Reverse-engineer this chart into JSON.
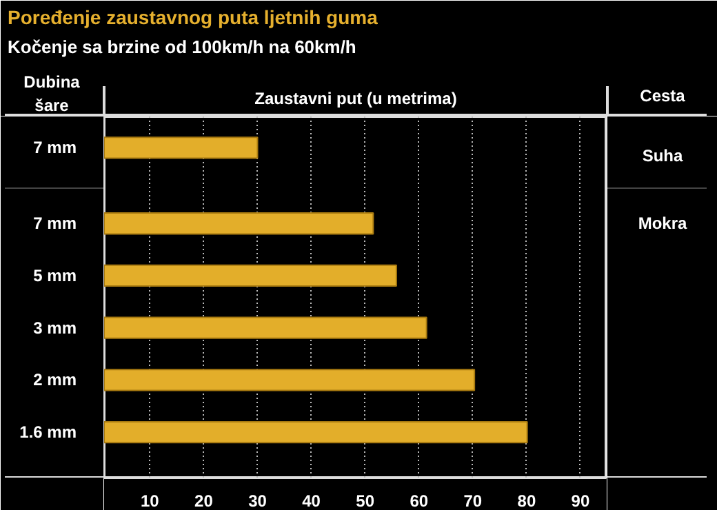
{
  "chart_data": {
    "type": "bar",
    "orientation": "horizontal",
    "title": "Poređenje zaustavnog puta ljetnih guma",
    "subtitle": "Kočenje sa brzine od 100km/h na 60km/h",
    "xlabel": "Zaustavni put (u metrima)",
    "ylabel": "Dubina šare",
    "y2label": "Cesta",
    "categories": [
      "7 mm",
      "7 mm",
      "5 mm",
      "3 mm",
      "2 mm",
      "1.6 mm"
    ],
    "values": [
      30,
      51.5,
      55.8,
      61.4,
      70.3,
      80.1
    ],
    "color": "#e3ae2a",
    "xlim": [
      1.5,
      95
    ],
    "xticks": [
      10,
      20,
      30,
      40,
      50,
      60,
      70,
      80,
      90
    ],
    "grid": "x",
    "annotations": [
      "Suha",
      "Mokra"
    ]
  }
}
